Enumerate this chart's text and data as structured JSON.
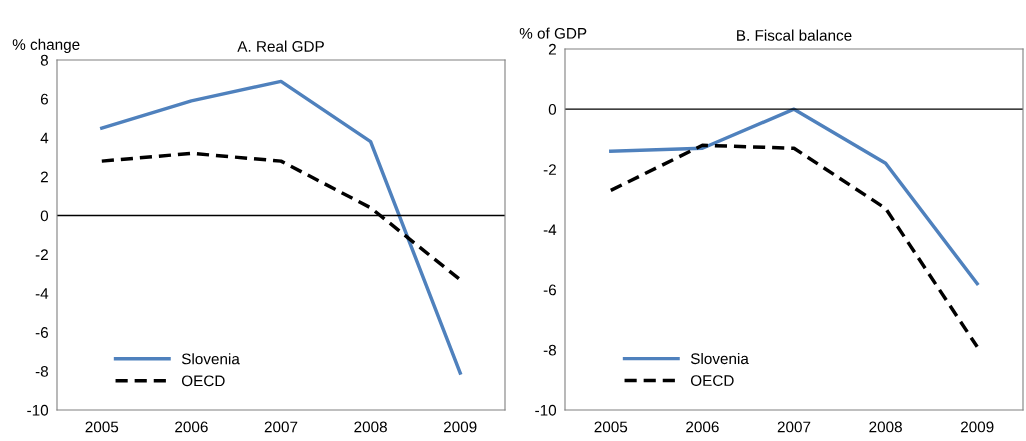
{
  "chart_data": [
    {
      "type": "line",
      "title": "A. Real GDP",
      "ylabel": "% change",
      "categories": [
        "2005",
        "2006",
        "2007",
        "2008",
        "2009"
      ],
      "series": [
        {
          "name": "Slovenia",
          "color": "#4f81bd",
          "line_style": "solid",
          "values": [
            4.5,
            5.9,
            6.9,
            3.8,
            -8.1
          ]
        },
        {
          "name": "OECD",
          "color": "#000000",
          "line_style": "dashed",
          "values": [
            2.8,
            3.2,
            2.8,
            0.4,
            -3.3
          ]
        }
      ],
      "ylim": [
        -10,
        8
      ],
      "yticks": [
        -10,
        -8,
        -6,
        -4,
        -2,
        0,
        2,
        4,
        6,
        8
      ],
      "ref_lines": [
        {
          "axis": "y",
          "value": 0,
          "color": "#000000"
        }
      ],
      "grid": false,
      "legend": "bottom left",
      "marker": "none"
    },
    {
      "type": "line",
      "title": "B. Fiscal balance",
      "ylabel": "% of GDP",
      "categories": [
        "2005",
        "2006",
        "2007",
        "2008",
        "2009"
      ],
      "series": [
        {
          "name": "Slovenia",
          "color": "#4f81bd",
          "line_style": "solid",
          "values": [
            -1.4,
            -1.3,
            0,
            -1.8,
            -5.8
          ]
        },
        {
          "name": "OECD",
          "color": "#000000",
          "line_style": "dashed",
          "values": [
            -2.7,
            -1.2,
            -1.3,
            -3.3,
            -7.9
          ]
        }
      ],
      "ylim": [
        -10,
        2
      ],
      "yticks": [
        -10,
        -8,
        -6,
        -4,
        -2,
        0,
        2
      ],
      "ref_lines": [
        {
          "axis": "y",
          "value": 0,
          "color": "#000000"
        }
      ],
      "grid": false,
      "legend": "bottom left",
      "marker": "none"
    }
  ]
}
